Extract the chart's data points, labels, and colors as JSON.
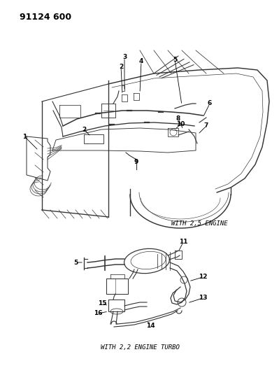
{
  "title": "91124 600",
  "bg_color": "#ffffff",
  "caption1": "WITH 2,5 ENGINE",
  "caption2": "WITH 2,2 ENGINE TURBO",
  "lw": 0.8
}
